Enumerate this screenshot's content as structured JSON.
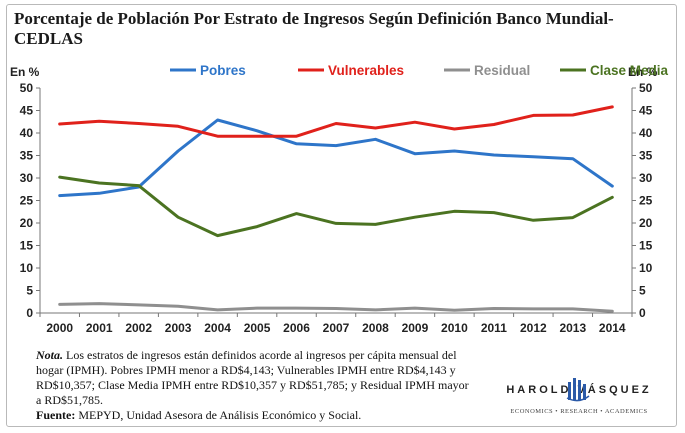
{
  "title": "Porcentaje de Población Por Estrato de Ingresos Según Definición Banco Mundial-CEDLAS",
  "chart_data": {
    "type": "line",
    "categories": [
      "2000",
      "2001",
      "2002",
      "2003",
      "2004",
      "2005",
      "2006",
      "2007",
      "2008",
      "2009",
      "2010",
      "2011",
      "2012",
      "2013",
      "2014"
    ],
    "ylim": [
      0,
      50
    ],
    "yticks": [
      0,
      5,
      10,
      15,
      20,
      25,
      30,
      35,
      40,
      45,
      50
    ],
    "ylabel_left": "En %",
    "ylabel_right": "En %",
    "grid": false,
    "legend": "top",
    "series": [
      {
        "name": "Pobres",
        "color": "#2e75c9",
        "values": [
          26.1,
          26.6,
          28.0,
          36.0,
          42.9,
          40.5,
          37.6,
          37.2,
          38.6,
          35.4,
          36.0,
          35.1,
          34.7,
          34.3,
          28.2
        ]
      },
      {
        "name": "Vulnerables",
        "color": "#e0211b",
        "values": [
          42.0,
          42.6,
          42.1,
          41.5,
          39.3,
          39.3,
          39.3,
          42.1,
          41.1,
          42.4,
          40.9,
          41.9,
          43.9,
          44.0,
          45.8
        ]
      },
      {
        "name": "Residual",
        "color": "#8f8f8f",
        "values": [
          1.9,
          2.1,
          1.8,
          1.5,
          0.7,
          1.1,
          1.1,
          1.0,
          0.7,
          1.1,
          0.6,
          1.0,
          0.9,
          0.9,
          0.4
        ]
      },
      {
        "name": "Clase Media",
        "color": "#4b7321",
        "values": [
          30.2,
          28.9,
          28.3,
          21.3,
          17.2,
          19.2,
          22.1,
          19.9,
          19.7,
          21.3,
          22.6,
          22.3,
          20.6,
          21.2,
          25.7
        ]
      }
    ]
  },
  "note": {
    "label": "Nota.",
    "text": " Los estratos de ingresos están definidos acorde al ingresos per cápita mensual del hogar (IPMH). Pobres IPMH menor a RD$4,143; Vulnerables IPMH entre RD$4,143 y RD$10,357; Clase Media IPMH entre RD$10,357 y RD$51,785; y Residual IPMH mayor a RD$51,785.",
    "source_label": "Fuente:",
    "source_text": " MEPYD, Unidad Asesora de Análisis Económico y Social."
  },
  "brand": {
    "name": "HAROLD   VÁSQUEZ",
    "tagline": "ECONOMICS • RESEARCH • ACADEMICS"
  }
}
